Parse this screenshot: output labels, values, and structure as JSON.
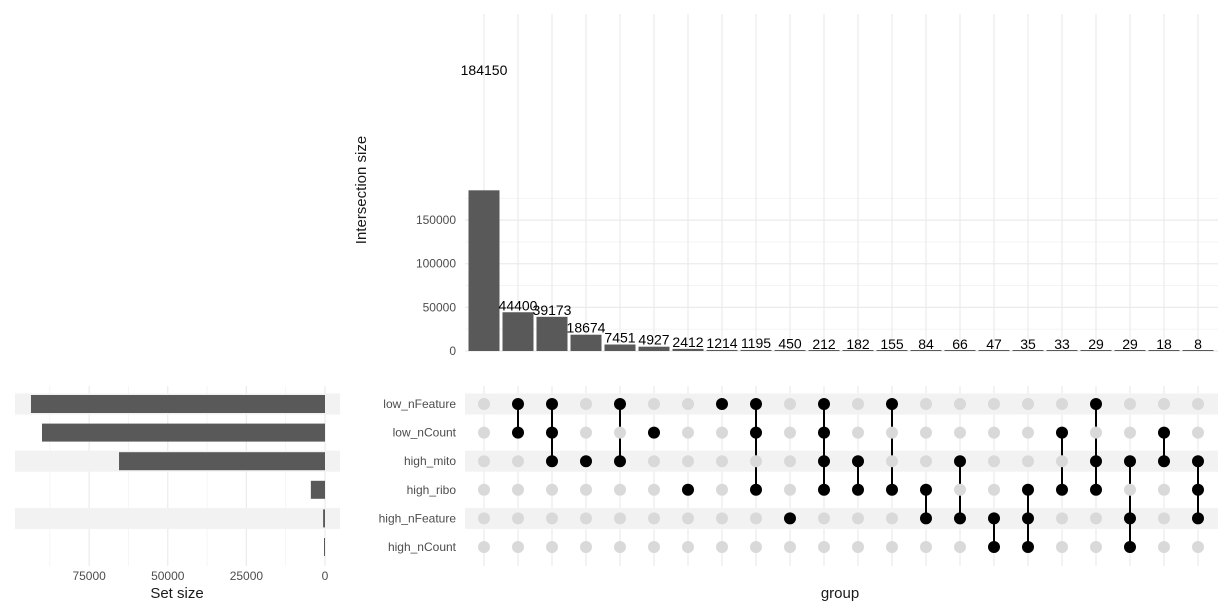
{
  "chart_data": {
    "type": "upset",
    "sets": [
      "low_nFeature",
      "low_nCount",
      "high_mito",
      "high_ribo",
      "high_nFeature",
      "high_nCount"
    ],
    "set_sizes": [
      93500,
      90000,
      65500,
      4500,
      600,
      100
    ],
    "set_size_axis": {
      "title": "Set size",
      "ticks": [
        75000,
        50000,
        25000,
        0
      ],
      "tick_labels": [
        "75000",
        "50000",
        "25000",
        "0"
      ],
      "max": 100000
    },
    "intersection_axis": {
      "title": "Intersection size",
      "ticks": [
        0,
        50000,
        100000,
        150000
      ],
      "tick_labels": [
        "0",
        "50000",
        "100000",
        "150000"
      ],
      "max": 188000
    },
    "group_axis_title": "group",
    "intersections": [
      {
        "value": 184150,
        "label": "184150",
        "members": []
      },
      {
        "value": 44400,
        "label": "44400",
        "members": [
          "low_nFeature",
          "low_nCount"
        ]
      },
      {
        "value": 39173,
        "label": "39173",
        "members": [
          "low_nFeature",
          "low_nCount",
          "high_mito"
        ]
      },
      {
        "value": 18674,
        "label": "18674",
        "members": [
          "high_mito"
        ]
      },
      {
        "value": 7451,
        "label": "7451",
        "members": [
          "low_nFeature",
          "high_mito"
        ]
      },
      {
        "value": 4927,
        "label": "4927",
        "members": [
          "low_nCount"
        ]
      },
      {
        "value": 2412,
        "label": "2412",
        "members": [
          "high_ribo"
        ]
      },
      {
        "value": 1214,
        "label": "1214",
        "members": [
          "low_nFeature"
        ]
      },
      {
        "value": 1195,
        "label": "1195",
        "members": [
          "low_nFeature",
          "low_nCount",
          "high_ribo"
        ]
      },
      {
        "value": 450,
        "label": "450",
        "members": [
          "high_nFeature"
        ]
      },
      {
        "value": 212,
        "label": "212",
        "members": [
          "low_nFeature",
          "low_nCount",
          "high_mito",
          "high_ribo"
        ]
      },
      {
        "value": 182,
        "label": "182",
        "members": [
          "high_mito",
          "high_ribo"
        ]
      },
      {
        "value": 155,
        "label": "155",
        "members": [
          "low_nFeature",
          "high_ribo"
        ]
      },
      {
        "value": 84,
        "label": "84",
        "members": [
          "high_ribo",
          "high_nFeature"
        ]
      },
      {
        "value": 66,
        "label": "66",
        "members": [
          "high_mito",
          "high_nFeature"
        ]
      },
      {
        "value": 47,
        "label": "47",
        "members": [
          "high_nFeature",
          "high_nCount"
        ]
      },
      {
        "value": 35,
        "label": "35",
        "members": [
          "high_ribo",
          "high_nFeature",
          "high_nCount"
        ]
      },
      {
        "value": 33,
        "label": "33",
        "members": [
          "low_nCount",
          "high_ribo"
        ]
      },
      {
        "value": 29,
        "label": "29",
        "members": [
          "low_nFeature",
          "high_mito",
          "high_ribo"
        ]
      },
      {
        "value": 29,
        "label": "29",
        "members": [
          "high_mito",
          "high_nFeature",
          "high_nCount"
        ]
      },
      {
        "value": 18,
        "label": "18",
        "members": [
          "low_nCount",
          "high_mito"
        ]
      },
      {
        "value": 8,
        "label": "8",
        "members": [
          "high_mito",
          "high_ribo",
          "high_nFeature"
        ]
      }
    ],
    "colors": {
      "bar": "#595959",
      "dot_active": "#000000",
      "dot_inactive": "#d9d9d9",
      "stripe": "#f2f2f2",
      "grid": "#ebebeb"
    }
  }
}
